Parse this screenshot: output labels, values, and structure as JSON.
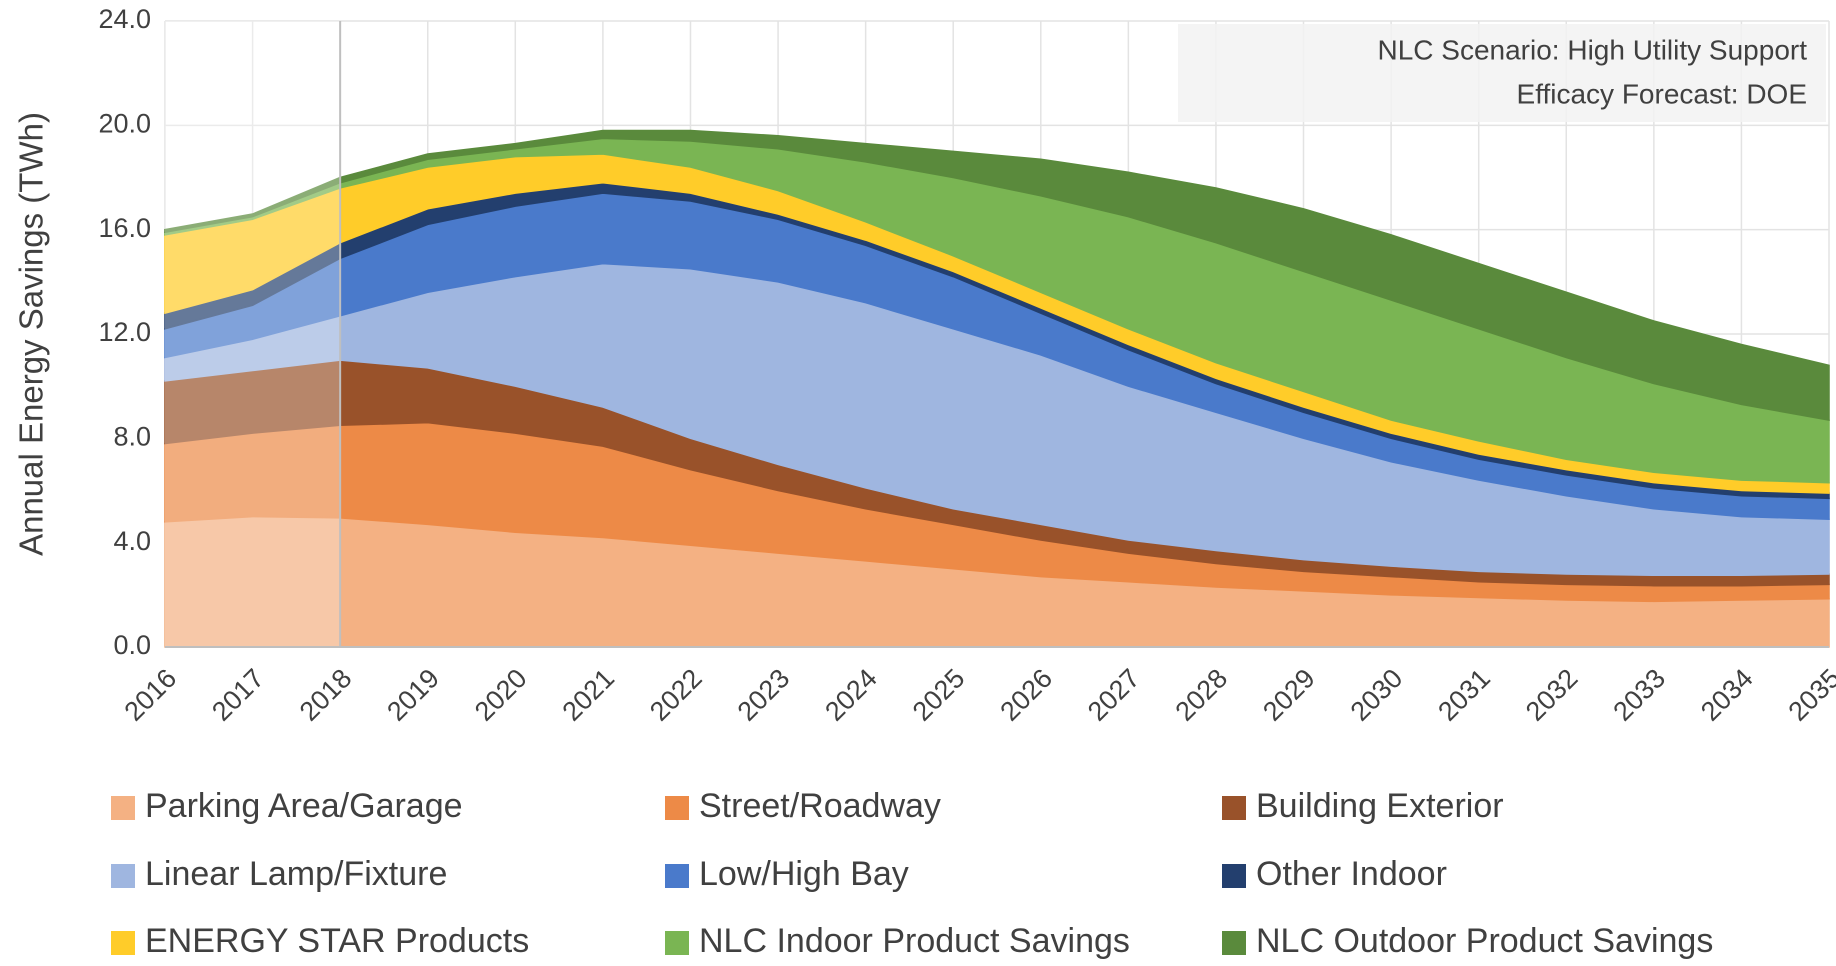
{
  "chart_data": {
    "type": "stacked_area",
    "y_axis_label": "Annual Energy Savings (TWh)",
    "annotations": [
      "NLC Scenario: High Utility Support",
      "Efficacy Forecast: DOE"
    ],
    "categories": [
      "2016",
      "2017",
      "2018",
      "2019",
      "2020",
      "2021",
      "2022",
      "2023",
      "2024",
      "2025",
      "2026",
      "2027",
      "2028",
      "2029",
      "2030",
      "2031",
      "2032",
      "2033",
      "2034",
      "2035"
    ],
    "ylim": [
      0,
      24
    ],
    "yticks": [
      {
        "value": 0,
        "label": "0.0"
      },
      {
        "value": 4,
        "label": "4.0"
      },
      {
        "value": 8,
        "label": "8.0"
      },
      {
        "value": 12,
        "label": "12.0"
      },
      {
        "value": 16,
        "label": "16.0"
      },
      {
        "value": 20,
        "label": "20.0"
      },
      {
        "value": 24,
        "label": "24.0"
      }
    ],
    "grid": true,
    "series": [
      {
        "name": "Parking Area/Garage",
        "color": "#f4b183",
        "values": [
          4.8,
          5.0,
          4.95,
          4.7,
          4.4,
          4.2,
          3.9,
          3.6,
          3.3,
          3.0,
          2.7,
          2.5,
          2.3,
          2.15,
          2.0,
          1.9,
          1.8,
          1.75,
          1.8,
          1.85
        ]
      },
      {
        "name": "Street/Roadway",
        "color": "#ed8a47",
        "values": [
          3.0,
          3.2,
          3.55,
          3.9,
          3.8,
          3.5,
          2.9,
          2.4,
          2.0,
          1.7,
          1.4,
          1.1,
          0.9,
          0.75,
          0.7,
          0.6,
          0.6,
          0.6,
          0.55,
          0.55
        ]
      },
      {
        "name": "Building Exterior",
        "color": "#99522a",
        "values": [
          2.4,
          2.4,
          2.5,
          2.1,
          1.8,
          1.5,
          1.2,
          1.0,
          0.8,
          0.6,
          0.6,
          0.5,
          0.5,
          0.45,
          0.4,
          0.4,
          0.4,
          0.4,
          0.4,
          0.4
        ]
      },
      {
        "name": "Linear Lamp/Fixture",
        "color": "#9fb6e0",
        "values": [
          0.9,
          1.2,
          1.7,
          2.9,
          4.2,
          5.5,
          6.5,
          7.0,
          7.1,
          6.9,
          6.5,
          5.9,
          5.3,
          4.65,
          4.0,
          3.5,
          3.0,
          2.55,
          2.25,
          2.1
        ]
      },
      {
        "name": "Low/High Bay",
        "color": "#4a7acb",
        "values": [
          1.1,
          1.3,
          2.2,
          2.6,
          2.7,
          2.7,
          2.6,
          2.4,
          2.2,
          2.0,
          1.6,
          1.4,
          1.1,
          1.0,
          0.9,
          0.8,
          0.8,
          0.8,
          0.8,
          0.8
        ]
      },
      {
        "name": "Other Indoor",
        "color": "#233f6e",
        "values": [
          0.6,
          0.6,
          0.6,
          0.6,
          0.5,
          0.4,
          0.3,
          0.2,
          0.2,
          0.2,
          0.2,
          0.2,
          0.2,
          0.2,
          0.2,
          0.2,
          0.2,
          0.2,
          0.2,
          0.2
        ]
      },
      {
        "name": "ENERGY STAR Products",
        "color": "#ffcc29",
        "values": [
          3.0,
          2.7,
          2.1,
          1.6,
          1.4,
          1.1,
          1.0,
          0.9,
          0.7,
          0.6,
          0.6,
          0.6,
          0.6,
          0.6,
          0.5,
          0.5,
          0.4,
          0.4,
          0.4,
          0.4
        ]
      },
      {
        "name": "NLC Indoor Product Savings",
        "color": "#7ab553",
        "values": [
          0.1,
          0.1,
          0.2,
          0.3,
          0.3,
          0.6,
          1.0,
          1.6,
          2.3,
          3.0,
          3.7,
          4.3,
          4.6,
          4.6,
          4.6,
          4.3,
          3.9,
          3.4,
          2.9,
          2.4
        ]
      },
      {
        "name": "NLC Outdoor Product Savings",
        "color": "#5a8a3c",
        "values": [
          0.1,
          0.1,
          0.2,
          0.2,
          0.2,
          0.3,
          0.4,
          0.5,
          0.7,
          1.0,
          1.4,
          1.7,
          2.1,
          2.4,
          2.5,
          2.5,
          2.5,
          2.4,
          2.3,
          2.1
        ]
      }
    ]
  }
}
